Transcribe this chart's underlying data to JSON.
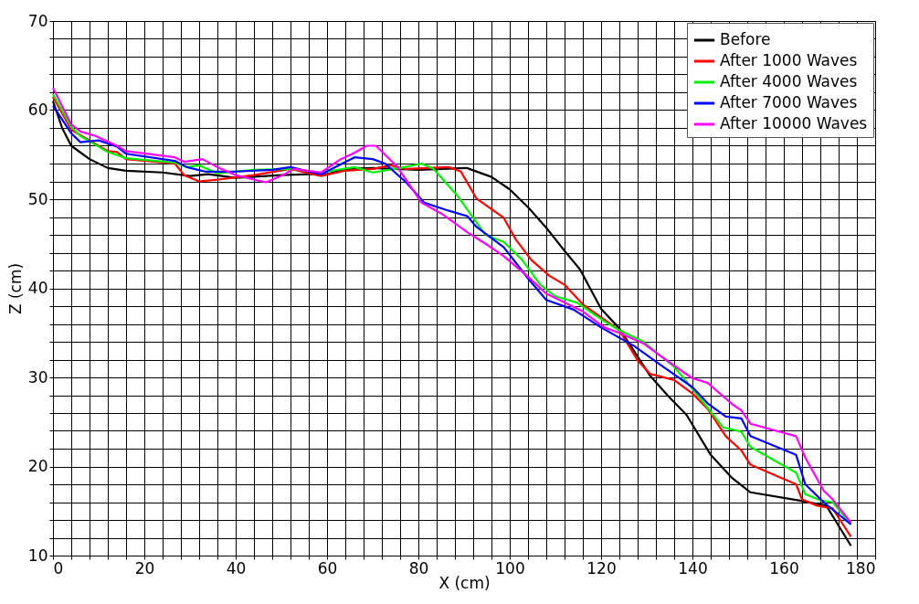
{
  "chart_data": {
    "type": "line",
    "xlabel": "X (cm)",
    "ylabel": "Z (cm)",
    "xlim": [
      0,
      180
    ],
    "ylim": [
      10,
      70
    ],
    "xticks": [
      0,
      {
        "value": 4,
        "label": null
      },
      {
        "value": 8,
        "label": null
      },
      {
        "value": 12,
        "label": null
      },
      {
        "value": 16,
        "label": null
      },
      20,
      {
        "value": 24,
        "label": null
      },
      {
        "value": 28,
        "label": null
      },
      {
        "value": 32,
        "label": null
      },
      {
        "value": 36,
        "label": null
      },
      40,
      {
        "value": 44,
        "label": null
      },
      {
        "value": 48,
        "label": null
      },
      {
        "value": 52,
        "label": null
      },
      {
        "value": 56,
        "label": null
      },
      60,
      {
        "value": 64,
        "label": null
      },
      {
        "value": 68,
        "label": null
      },
      {
        "value": 72,
        "label": null
      },
      {
        "value": 76,
        "label": null
      },
      80,
      {
        "value": 84,
        "label": null
      },
      {
        "value": 88,
        "label": null
      },
      {
        "value": 92,
        "label": null
      },
      {
        "value": 96,
        "label": null
      },
      100,
      {
        "value": 104,
        "label": null
      },
      {
        "value": 108,
        "label": null
      },
      {
        "value": 112,
        "label": null
      },
      {
        "value": 116,
        "label": null
      },
      120,
      {
        "value": 124,
        "label": null
      },
      {
        "value": 128,
        "label": null
      },
      {
        "value": 132,
        "label": null
      },
      {
        "value": 136,
        "label": null
      },
      140,
      {
        "value": 144,
        "label": null
      },
      {
        "value": 148,
        "label": null
      },
      {
        "value": 152,
        "label": null
      },
      {
        "value": 156,
        "label": null
      },
      160,
      {
        "value": 164,
        "label": null
      },
      {
        "value": 168,
        "label": null
      },
      {
        "value": 172,
        "label": null
      },
      {
        "value": 176,
        "label": null
      },
      180
    ],
    "yticks": [
      10,
      {
        "value": 12,
        "label": null
      },
      {
        "value": 14,
        "label": null
      },
      {
        "value": 16,
        "label": null
      },
      {
        "value": 18,
        "label": null
      },
      20,
      {
        "value": 22,
        "label": null
      },
      {
        "value": 24,
        "label": null
      },
      {
        "value": 26,
        "label": null
      },
      {
        "value": 28,
        "label": null
      },
      30,
      {
        "value": 32,
        "label": null
      },
      {
        "value": 34,
        "label": null
      },
      {
        "value": 36,
        "label": null
      },
      {
        "value": 38,
        "label": null
      },
      40,
      {
        "value": 42,
        "label": null
      },
      {
        "value": 44,
        "label": null
      },
      {
        "value": 46,
        "label": null
      },
      {
        "value": 48,
        "label": null
      },
      50,
      {
        "value": 52,
        "label": null
      },
      {
        "value": 54,
        "label": null
      },
      {
        "value": 56,
        "label": null
      },
      {
        "value": 58,
        "label": null
      },
      60,
      {
        "value": 62,
        "label": null
      },
      {
        "value": 64,
        "label": null
      },
      {
        "value": 66,
        "label": null
      },
      {
        "value": 68,
        "label": null
      },
      70
    ],
    "grid": true,
    "legend": "top right",
    "marker": "none",
    "line_style": "solid",
    "series": [
      {
        "name": "Before",
        "color": "#000000",
        "x": [
          0,
          2,
          4,
          8,
          12,
          16,
          24,
          30,
          34,
          40,
          50,
          56,
          60,
          64,
          70,
          80,
          90.6,
          96,
          100,
          104,
          108,
          112,
          115.4,
          120,
          124,
          130.7,
          134.7,
          138.7,
          144,
          148.7,
          152.7,
          163.3,
          169.3,
          174.7
        ],
        "values": [
          61,
          58,
          56,
          54.5,
          53.5,
          53.2,
          53,
          52.6,
          52.8,
          52.4,
          52.7,
          52.8,
          52.8,
          53.4,
          53.5,
          53.3,
          53.5,
          52.5,
          51.1,
          49.1,
          46.8,
          44.2,
          42.1,
          37.7,
          35.5,
          30.2,
          27.9,
          25.8,
          21.3,
          18.7,
          17.1,
          16.2,
          15.6,
          11.1
        ]
      },
      {
        "name": "After 1000 Waves",
        "color": "#ff0000",
        "x": [
          0,
          4,
          12,
          14,
          16,
          26.7,
          28.7,
          32,
          36,
          44,
          52,
          58.7,
          64,
          70,
          74,
          77.3,
          86.7,
          89.3,
          92.7,
          98.7,
          101.3,
          104.7,
          108.7,
          112,
          116,
          124,
          128,
          130.7,
          136,
          140,
          143.3,
          147.3,
          150.7,
          152.7,
          162.7,
          164,
          167.3,
          170.7,
          174.7
        ],
        "values": [
          61.5,
          57.8,
          55.4,
          55.3,
          54.5,
          54,
          52.7,
          52,
          52.2,
          52.7,
          53.4,
          52.6,
          53.2,
          53.4,
          53.8,
          53.4,
          53.6,
          53.1,
          50.1,
          47.9,
          45.5,
          43.2,
          41.4,
          40.4,
          38.2,
          35.3,
          31.9,
          30.4,
          29.7,
          28.2,
          26.5,
          23.4,
          21.8,
          20.2,
          18,
          16.3,
          15.6,
          15.3,
          12.1
        ]
      },
      {
        "name": "After 4000 Waves",
        "color": "#00ee00",
        "x": [
          0,
          4,
          6,
          12,
          16,
          26.7,
          29.3,
          32,
          36,
          44,
          52,
          58.7,
          66,
          70,
          76,
          80.7,
          83.3,
          88.7,
          92,
          94.7,
          98.7,
          102.7,
          106.7,
          110,
          114.7,
          120.7,
          124,
          129.3,
          136,
          141.3,
          146.7,
          150.7,
          152.7,
          162.7,
          164.7,
          168,
          170.7,
          174.7
        ],
        "values": [
          61.8,
          58.1,
          57.1,
          55.3,
          54.6,
          54.1,
          53.6,
          53.8,
          52.9,
          53.3,
          53.4,
          53,
          53.6,
          53,
          53.5,
          54,
          53.4,
          50.3,
          47.9,
          46,
          45.2,
          43.2,
          40.4,
          39.1,
          38.4,
          36.3,
          35.3,
          34,
          31.2,
          27.9,
          24.4,
          23.9,
          22.2,
          19.3,
          16.9,
          16.2,
          16,
          13.5
        ]
      },
      {
        "name": "After 7000 Waves",
        "color": "#0000ff",
        "x": [
          0,
          4,
          6,
          10,
          14,
          16,
          26.7,
          29.3,
          33.3,
          40,
          48,
          52,
          58.7,
          66,
          70,
          72.7,
          77.3,
          81.3,
          86.7,
          90.7,
          92.7,
          98.7,
          104,
          108,
          114,
          120,
          127.3,
          133.3,
          140,
          143.3,
          147.3,
          150.7,
          152.7,
          162.7,
          164.7,
          168.7,
          174.7
        ],
        "values": [
          60.5,
          57.4,
          56.4,
          56.6,
          55.9,
          55.1,
          54.3,
          53.6,
          53.1,
          53.1,
          53.3,
          53.6,
          52.8,
          54.7,
          54.5,
          54,
          51.9,
          49.6,
          48.7,
          48.1,
          46.9,
          44.6,
          41.1,
          38.7,
          37.6,
          35.6,
          33.5,
          31.3,
          28.9,
          27.1,
          25.6,
          25.4,
          23.4,
          21.3,
          18,
          16,
          13.5
        ]
      },
      {
        "name": "After 10000 Waves",
        "color": "#ff00ff",
        "x": [
          0,
          4,
          6,
          9.3,
          14,
          16,
          26.7,
          28.7,
          32.7,
          36,
          40,
          44,
          46.7,
          50.7,
          52.7,
          58.7,
          62.7,
          66,
          68.7,
          70.7,
          75.3,
          80.7,
          85.3,
          90.7,
          94.7,
          98.7,
          104,
          108,
          116,
          120.7,
          124,
          129.3,
          133.3,
          140,
          143.3,
          148.7,
          150.7,
          152.7,
          162.7,
          164.7,
          168.7,
          170.7,
          174.7
        ],
        "values": [
          62.5,
          58.4,
          57.6,
          57.1,
          56,
          55.4,
          54.7,
          54.2,
          54.5,
          53.6,
          52.7,
          52.2,
          51.9,
          52.8,
          53.4,
          53,
          54.4,
          55.2,
          56,
          56,
          53.7,
          49.6,
          48.3,
          46.3,
          45,
          43.6,
          41.3,
          39.4,
          37.4,
          35.6,
          35,
          33.8,
          32.3,
          29.9,
          29.4,
          27,
          26.3,
          24.8,
          23.4,
          21,
          17.3,
          16.3,
          13.7
        ]
      }
    ]
  }
}
